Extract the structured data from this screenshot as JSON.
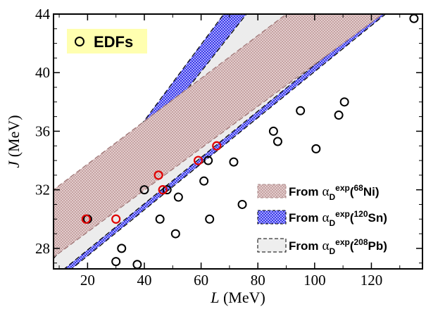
{
  "chart_data": {
    "type": "scatter",
    "xlabel_italic": "L",
    "xlabel_unit": " (MeV)",
    "ylabel_italic": "J",
    "ylabel_unit": " (MeV)",
    "xlim": [
      8,
      138
    ],
    "ylim": [
      26.6,
      44
    ],
    "x_ticks": [
      20,
      40,
      60,
      80,
      100,
      120
    ],
    "y_ticks": [
      28,
      32,
      36,
      40,
      44
    ],
    "grid": false,
    "legend_position": "bottom-right",
    "colors": {
      "ni": "#c9a8a8",
      "sn": "#4a4ae0",
      "pb": "#e8e8e8",
      "edf_marker": "#000000",
      "highlight_marker": "#e00000"
    },
    "bands": [
      {
        "label": "From",
        "alpha": "α",
        "sub": "D",
        "sup1": "exp",
        "nucleus": "(",
        "iso": "68",
        "elem": "Ni)",
        "key": "ni",
        "lower": [
          [
            8,
            27.4
          ],
          [
            124,
            44
          ]
        ],
        "upper": [
          [
            8,
            32.0
          ],
          [
            90,
            44
          ]
        ]
      },
      {
        "label": "From",
        "alpha": "α",
        "sub": "D",
        "sup1": "exp",
        "nucleus": "(",
        "iso": "120",
        "elem": "Sn)",
        "key": "sn",
        "lower": [
          [
            8,
            25.6
          ],
          [
            125,
            44
          ]
        ],
        "upper": [
          [
            8,
            28.4
          ],
          [
            68,
            44
          ]
        ]
      },
      {
        "label": "From",
        "alpha": "α",
        "sub": "D",
        "sup1": "exp",
        "nucleus": "(",
        "iso": "208",
        "elem": "Pb)",
        "key": "pb",
        "lower": [
          [
            8,
            26.0
          ],
          [
            122,
            44
          ]
        ],
        "upper": [
          [
            8,
            27.3
          ],
          [
            76,
            44
          ]
        ]
      }
    ],
    "edf_legend": "EDFs",
    "series": [
      {
        "name": "EDFs",
        "points": [
          [
            20,
            30.0
          ],
          [
            30,
            27.1
          ],
          [
            32,
            28.0
          ],
          [
            37.5,
            26.9
          ],
          [
            40,
            32.0
          ],
          [
            45.5,
            30.0
          ],
          [
            48,
            32.0
          ],
          [
            51,
            29.0
          ],
          [
            52,
            31.5
          ],
          [
            61,
            32.6
          ],
          [
            62.5,
            34.0
          ],
          [
            63,
            30.0
          ],
          [
            71.5,
            33.9
          ],
          [
            74.5,
            31.0
          ],
          [
            85.5,
            36.0
          ],
          [
            87,
            35.3
          ],
          [
            95,
            37.4
          ],
          [
            100.5,
            34.8
          ],
          [
            108.5,
            37.1
          ],
          [
            110.5,
            38.0
          ],
          [
            135,
            43.7
          ]
        ]
      },
      {
        "points": [
          [
            19.5,
            30.0
          ],
          [
            30,
            30.0
          ],
          [
            45,
            33.0
          ],
          [
            46.5,
            32.0
          ],
          [
            59,
            34.0
          ],
          [
            65.5,
            35.0
          ]
        ]
      }
    ]
  }
}
